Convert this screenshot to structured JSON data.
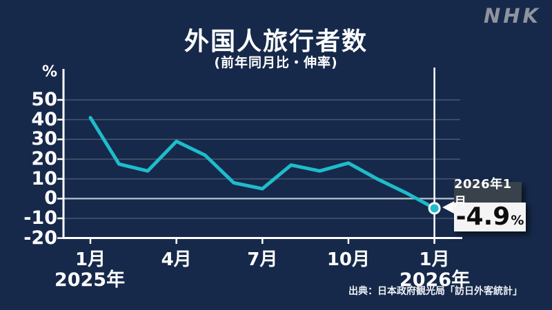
{
  "brand": {
    "logo_text": "NHK",
    "logo_color": "#8e949e"
  },
  "header": {
    "title": "外国人旅行者数",
    "subtitle": "(前年同月比・伸率)"
  },
  "y_axis": {
    "unit_label": "%"
  },
  "x_axis": {
    "year_left": "2025年",
    "year_right": "2026年"
  },
  "callout": {
    "date_label": "2026年1月",
    "value_text": "-4.9",
    "unit": "%"
  },
  "source_text": "出典：日本政府観光局「訪日外客統計」",
  "colors": {
    "background": "#16294a",
    "line": "#1fbccb",
    "axis": "#ffffff",
    "grid": "rgba(255,255,255,0.22)",
    "zero_line": "#a9b4c2",
    "marker_line": "#ffffff",
    "callout_label_bg": "#39414b",
    "callout_value_bg": "#f4f4f4",
    "logo": "#8e949e"
  },
  "chart_data": {
    "type": "line",
    "title": "外国人旅行者数",
    "subtitle": "(前年同月比・伸率)",
    "ylabel": "%",
    "x_months": [
      "2025年1月",
      "2025年2月",
      "2025年3月",
      "2025年4月",
      "2025年5月",
      "2025年6月",
      "2025年7月",
      "2025年8月",
      "2025年9月",
      "2025年10月",
      "2025年11月",
      "2025年12月",
      "2026年1月"
    ],
    "values": [
      41,
      17.5,
      14,
      29,
      22,
      8,
      5,
      17,
      14,
      18,
      10,
      3,
      -4.9
    ],
    "y_ticks": [
      50,
      40,
      30,
      20,
      10,
      0,
      -10,
      -20
    ],
    "ylim": [
      -20,
      55
    ],
    "x_tick_labels": [
      "1月",
      "4月",
      "7月",
      "10月",
      "1月"
    ],
    "x_tick_month_index": [
      0,
      3,
      6,
      9,
      12
    ],
    "grid": true,
    "zero_line_highlighted": true,
    "annotation": {
      "label": "2026年1月",
      "value": -4.9,
      "display": "-4.9%",
      "month_index": 12
    }
  }
}
